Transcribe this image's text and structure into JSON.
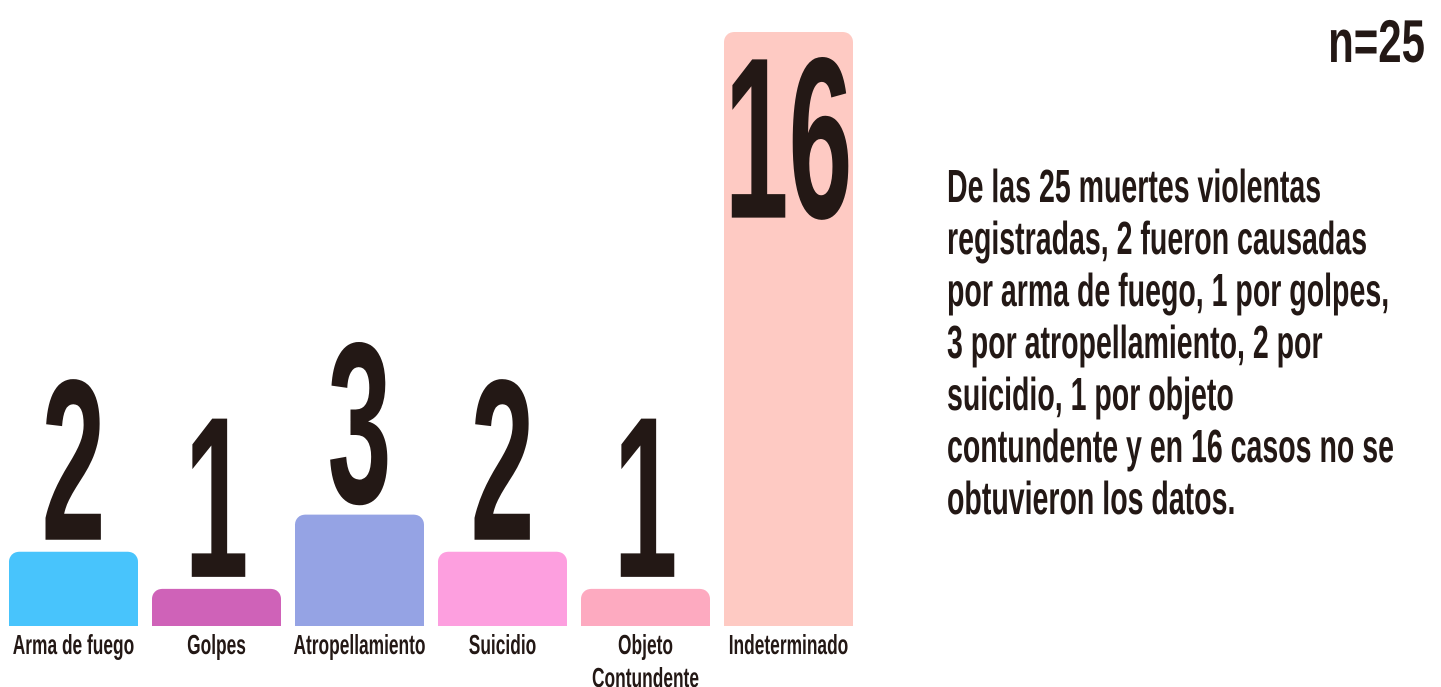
{
  "chart_data": {
    "type": "bar",
    "categories": [
      "Arma de fuego",
      "Golpes",
      "Atropellamiento",
      "Suicidio",
      "Objeto Contundente",
      "Indeterminado"
    ],
    "values": [
      2,
      1,
      3,
      2,
      1,
      16
    ],
    "colors": [
      "#48c4fc",
      "#cf62b8",
      "#95a3e4",
      "#fd9fdf",
      "#fdaac0",
      "#fecac3"
    ],
    "ylim": [
      0,
      16
    ],
    "annotation": "n=25",
    "description": "De las 25 muertes violentas registradas, 2 fueron causadas por arma de fuego, 1 por golpes, 3 por atropellamiento, 2 por suicidio, 1 por objeto contundente y en 16 casos no se obtuvieron los datos."
  }
}
